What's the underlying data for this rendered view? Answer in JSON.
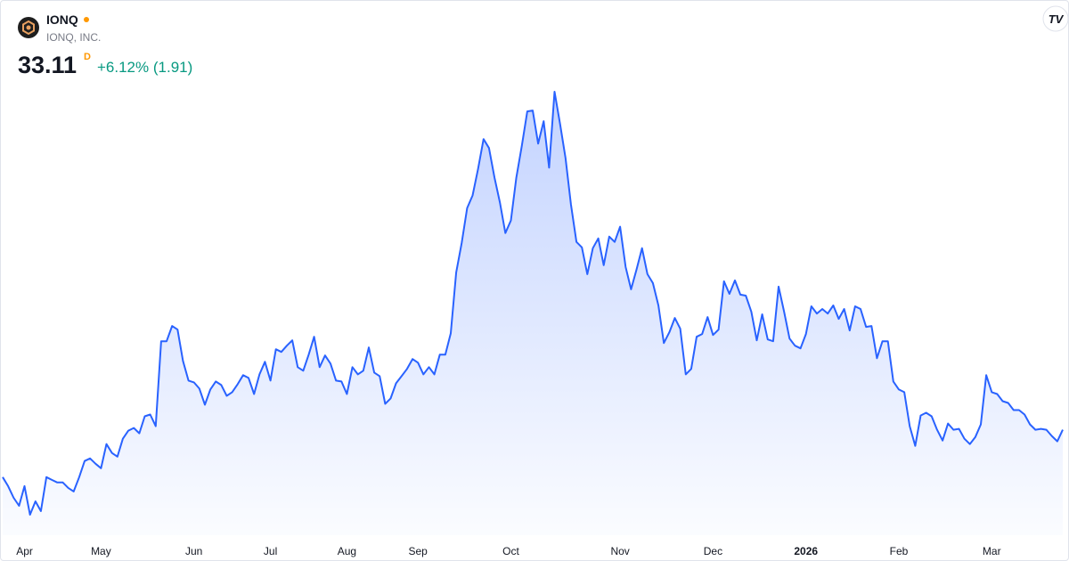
{
  "header": {
    "symbol": "IONQ",
    "company": "IONQ, INC.",
    "price": "33.11",
    "interval": "D",
    "change": "+6.12% (1.91)"
  },
  "chart_data": {
    "type": "area",
    "color": "#2962ff",
    "categories": [
      null,
      null,
      null,
      null,
      "Apr",
      null,
      null,
      null,
      null,
      null,
      null,
      null,
      null,
      null,
      null,
      null,
      null,
      null,
      "May",
      null,
      null,
      null,
      null,
      null,
      null,
      null,
      null,
      null,
      null,
      null,
      null,
      null,
      null,
      null,
      null,
      "Jun",
      null,
      null,
      null,
      null,
      null,
      null,
      null,
      null,
      null,
      null,
      null,
      null,
      null,
      "Jul",
      null,
      null,
      null,
      null,
      null,
      null,
      null,
      null,
      null,
      null,
      null,
      null,
      null,
      "Aug",
      null,
      null,
      null,
      null,
      null,
      null,
      null,
      null,
      null,
      null,
      null,
      null,
      "Sep",
      null,
      null,
      null,
      null,
      null,
      null,
      null,
      null,
      null,
      null,
      null,
      null,
      null,
      null,
      null,
      null,
      "Oct",
      null,
      null,
      null,
      null,
      null,
      null,
      null,
      null,
      null,
      null,
      null,
      null,
      null,
      null,
      null,
      null,
      null,
      null,
      null,
      "Nov",
      null,
      null,
      null,
      null,
      null,
      null,
      null,
      null,
      null,
      null,
      null,
      null,
      null,
      null,
      null,
      null,
      "Dec",
      null,
      null,
      null,
      null,
      null,
      null,
      null,
      null,
      null,
      null,
      null,
      null,
      null,
      null,
      null,
      null,
      "2026",
      null,
      null,
      null,
      null,
      null,
      null,
      null,
      null,
      null,
      null,
      null,
      null,
      null,
      null,
      null,
      null,
      "Feb",
      null,
      null,
      null,
      null,
      null,
      null,
      null,
      null,
      null,
      null,
      null,
      null,
      null,
      null,
      null,
      null,
      "Mar",
      null,
      null,
      null,
      null,
      null,
      null,
      null,
      null,
      null,
      null,
      null,
      null,
      null
    ],
    "values": [
      26.49,
      25.24,
      23.61,
      22.49,
      25.24,
      21.24,
      23.11,
      21.74,
      26.49,
      26.11,
      25.74,
      25.74,
      24.99,
      24.49,
      26.49,
      28.74,
      29.11,
      28.36,
      27.74,
      31.11,
      29.86,
      29.36,
      31.86,
      32.99,
      33.36,
      32.61,
      34.99,
      35.24,
      33.61,
      45.49,
      45.49,
      47.61,
      47.11,
      42.74,
      39.99,
      39.74,
      38.86,
      36.61,
      38.74,
      39.86,
      39.36,
      37.86,
      38.36,
      39.49,
      40.74,
      40.36,
      38.11,
      40.86,
      42.61,
      39.99,
      44.36,
      43.99,
      44.86,
      45.61,
      41.86,
      41.36,
      43.61,
      46.11,
      41.86,
      43.49,
      42.36,
      39.99,
      39.86,
      38.11,
      41.86,
      40.86,
      41.36,
      44.61,
      41.11,
      40.61,
      36.74,
      37.49,
      39.61,
      40.61,
      41.61,
      42.99,
      42.49,
      40.86,
      41.86,
      40.86,
      43.61,
      43.61,
      46.61,
      55.11,
      59.24,
      64.11,
      65.86,
      69.61,
      73.74,
      72.49,
      68.36,
      64.86,
      60.61,
      62.36,
      68.36,
      72.74,
      77.61,
      77.74,
      73.11,
      76.24,
      69.74,
      80.36,
      75.86,
      71.11,
      64.61,
      59.36,
      58.61,
      54.86,
      58.49,
      59.86,
      56.11,
      60.11,
      59.36,
      61.49,
      55.86,
      52.74,
      55.49,
      58.49,
      54.86,
      53.61,
      50.49,
      45.24,
      46.74,
      48.74,
      47.24,
      40.86,
      41.61,
      46.11,
      46.49,
      48.86,
      46.36,
      47.11,
      53.86,
      52.11,
      53.99,
      51.99,
      51.86,
      49.61,
      45.61,
      49.24,
      45.74,
      45.49,
      53.11,
      49.61,
      45.86,
      44.86,
      44.49,
      46.49,
      50.36,
      49.36,
      49.99,
      49.36,
      50.49,
      48.61,
      49.99,
      46.99,
      50.36,
      49.99,
      47.49,
      47.61,
      43.11,
      45.49,
      45.49,
      39.86,
      38.74,
      38.36,
      33.61,
      30.86,
      35.11,
      35.49,
      34.99,
      33.11,
      31.61,
      33.99,
      33.11,
      33.24,
      31.86,
      31.11,
      32.11,
      33.86,
      40.74,
      38.36,
      38.11,
      37.11,
      36.86,
      35.86,
      35.86,
      35.24,
      33.86,
      33.11,
      33.24,
      33.11,
      32.24,
      31.49,
      33.11
    ]
  }
}
